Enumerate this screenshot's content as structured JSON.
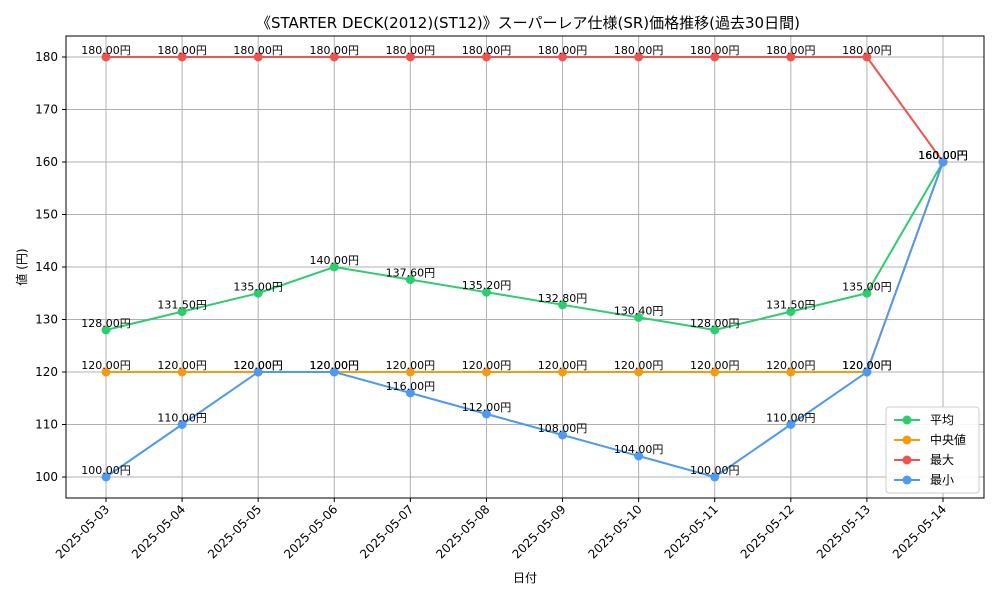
{
  "chart_data": {
    "type": "line",
    "title": "《STARTER DECK(2012)(ST12)》スーパーレア仕様(SR)価格推移(過去30日間)",
    "xlabel": "日付",
    "ylabel": "値 (円)",
    "ylim": [
      96,
      184
    ],
    "yticks": [
      100,
      110,
      120,
      130,
      140,
      150,
      160,
      170,
      180
    ],
    "grid": true,
    "legend_position": "bottom-right",
    "x": [
      "2025-05-03",
      "2025-05-04",
      "2025-05-05",
      "2025-05-06",
      "2025-05-07",
      "2025-05-08",
      "2025-05-09",
      "2025-05-10",
      "2025-05-11",
      "2025-05-12",
      "2025-05-13",
      "2025-05-14"
    ],
    "series": [
      {
        "name": "平均",
        "color": "#2ecc71",
        "values": [
          128.0,
          131.5,
          135.0,
          140.0,
          137.6,
          135.2,
          132.8,
          130.4,
          128.0,
          131.5,
          135.0,
          160.0
        ]
      },
      {
        "name": "中央値",
        "color": "#f39c12",
        "values": [
          120.0,
          120.0,
          120.0,
          120.0,
          120.0,
          120.0,
          120.0,
          120.0,
          120.0,
          120.0,
          120.0,
          160.0
        ]
      },
      {
        "name": "最大",
        "color": "#ef5350",
        "values": [
          180.0,
          180.0,
          180.0,
          180.0,
          180.0,
          180.0,
          180.0,
          180.0,
          180.0,
          180.0,
          180.0,
          160.0
        ]
      },
      {
        "name": "最小",
        "color": "#4e9af1",
        "values": [
          100.0,
          110.0,
          120.0,
          120.0,
          116.0,
          112.0,
          108.0,
          104.0,
          100.0,
          110.0,
          120.0,
          160.0
        ]
      }
    ],
    "label_suffix": "円"
  }
}
